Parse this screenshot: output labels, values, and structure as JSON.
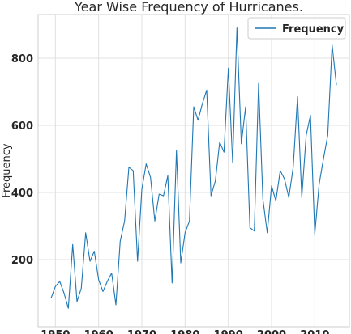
{
  "chart_data": {
    "type": "line",
    "title": "Year Wise Frequency of Hurricanes.",
    "xlabel": "",
    "ylabel": "Frequency",
    "xlim": [
      1946,
      2018
    ],
    "ylim": [
      0,
      930
    ],
    "xticks": [
      1950,
      1960,
      1970,
      1980,
      1990,
      2000,
      2010
    ],
    "yticks": [
      200,
      400,
      600,
      800
    ],
    "grid": true,
    "legend": {
      "position": "top-right",
      "entries": [
        "Frequency"
      ]
    },
    "series": [
      {
        "name": "Frequency",
        "color": "#1f77b4",
        "x": [
          1949,
          1950,
          1951,
          1952,
          1953,
          1954,
          1955,
          1956,
          1957,
          1958,
          1959,
          1960,
          1961,
          1962,
          1963,
          1964,
          1965,
          1966,
          1967,
          1968,
          1969,
          1970,
          1971,
          1972,
          1973,
          1974,
          1975,
          1976,
          1977,
          1978,
          1979,
          1980,
          1981,
          1982,
          1983,
          1984,
          1985,
          1986,
          1987,
          1988,
          1989,
          1990,
          1991,
          1992,
          1993,
          1994,
          1995,
          1996,
          1997,
          1998,
          1999,
          2000,
          2001,
          2002,
          2003,
          2004,
          2005,
          2006,
          2007,
          2008,
          2009,
          2010,
          2011,
          2012,
          2013,
          2014,
          2015
        ],
        "y": [
          85,
          120,
          135,
          100,
          55,
          245,
          75,
          115,
          280,
          195,
          225,
          140,
          105,
          135,
          160,
          65,
          255,
          315,
          475,
          465,
          195,
          410,
          485,
          445,
          315,
          395,
          390,
          450,
          130,
          525,
          190,
          280,
          315,
          655,
          615,
          665,
          705,
          390,
          435,
          550,
          520,
          770,
          490,
          890,
          545,
          655,
          295,
          285,
          725,
          380,
          280,
          420,
          375,
          465,
          440,
          385,
          475,
          685,
          385,
          570,
          630,
          275,
          425,
          500,
          570,
          840,
          720
        ]
      }
    ]
  }
}
